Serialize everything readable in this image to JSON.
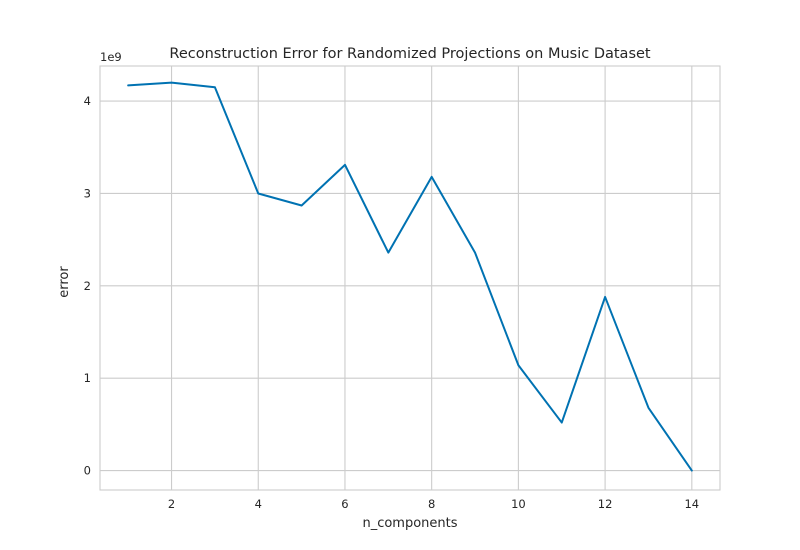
{
  "chart_data": {
    "type": "line",
    "title": "Reconstruction Error for Randomized Projections on Music Dataset",
    "xlabel": "n_components",
    "ylabel": "error",
    "y_offset_label": "1e9",
    "xlim": [
      0.35,
      14.65
    ],
    "ylim": [
      -0.21,
      4.38
    ],
    "x_ticks": [
      2,
      4,
      6,
      8,
      10,
      12,
      14
    ],
    "y_ticks": [
      0,
      1,
      2,
      3,
      4
    ],
    "grid": true,
    "series": [
      {
        "color": "#0072b2",
        "x": [
          1,
          2,
          3,
          4,
          5,
          6,
          7,
          8,
          9,
          10,
          11,
          12,
          13,
          14
        ],
        "y": [
          4.17,
          4.2,
          4.15,
          3.0,
          2.87,
          3.31,
          2.36,
          3.18,
          2.36,
          1.14,
          0.52,
          1.88,
          0.68,
          0.0
        ]
      }
    ]
  }
}
